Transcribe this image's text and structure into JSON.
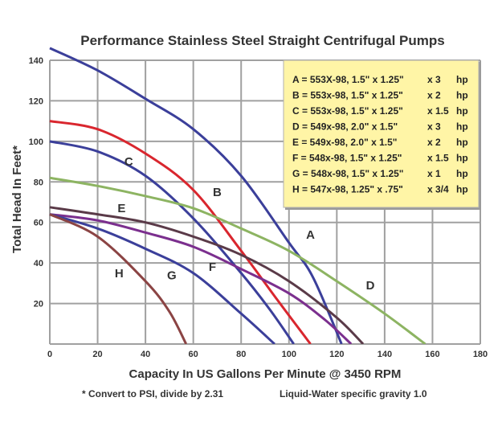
{
  "chart_data": {
    "type": "line",
    "title": "Performance Stainless Steel Straight Centrifugal Pumps",
    "xlabel": "Capacity In US Gallons Per Minute @ 3450 RPM",
    "ylabel": "Total Head In Feet*",
    "xlim": [
      0,
      180
    ],
    "ylim": [
      0,
      140
    ],
    "xticks": [
      0,
      20,
      40,
      60,
      80,
      100,
      120,
      140,
      160,
      180
    ],
    "yticks": [
      20,
      40,
      60,
      80,
      100,
      120,
      140
    ],
    "grid": true,
    "legend_position": "top-right",
    "notes": [
      "* Convert to PSI, divide by 2.31",
      "Liquid-Water specific gravity 1.0"
    ],
    "series": [
      {
        "name": "A",
        "legend": "A = 553X-98, 1.5\" x 1.25\"",
        "hp": "x 3",
        "hp_unit": "hp",
        "color": "#3b3f9a",
        "points": [
          [
            0,
            146
          ],
          [
            20,
            135
          ],
          [
            40,
            121
          ],
          [
            60,
            106
          ],
          [
            80,
            83
          ],
          [
            100,
            50
          ],
          [
            110,
            33
          ],
          [
            122,
            0
          ]
        ]
      },
      {
        "name": "B",
        "legend": "B = 553x-98, 1.5\" x 1.25\"",
        "hp": "x 2",
        "hp_unit": "hp",
        "color": "#d9262e",
        "points": [
          [
            0,
            110
          ],
          [
            20,
            106
          ],
          [
            40,
            94
          ],
          [
            60,
            76
          ],
          [
            80,
            46
          ],
          [
            95,
            22
          ],
          [
            109,
            0
          ]
        ]
      },
      {
        "name": "C",
        "legend": "C = 553x-98, 1.5\" x 1.25\"",
        "hp": "x 1.5",
        "hp_unit": "hp",
        "color": "#3b3f9a",
        "points": [
          [
            0,
            100
          ],
          [
            20,
            95
          ],
          [
            40,
            83
          ],
          [
            60,
            62
          ],
          [
            80,
            35
          ],
          [
            92,
            17
          ],
          [
            102,
            0
          ]
        ]
      },
      {
        "name": "D",
        "legend": "D = 549x-98, 2.0\" x 1.5\"",
        "hp": "x 3",
        "hp_unit": "hp",
        "color": "#8db462",
        "points": [
          [
            0,
            82
          ],
          [
            20,
            78
          ],
          [
            40,
            73
          ],
          [
            60,
            67
          ],
          [
            80,
            57
          ],
          [
            100,
            46
          ],
          [
            120,
            31
          ],
          [
            140,
            15
          ],
          [
            157,
            0
          ]
        ]
      },
      {
        "name": "E",
        "legend": "E = 549x-98, 2.0\" x 1.5\"",
        "hp": "x 2",
        "hp_unit": "hp",
        "color": "#5a3a48",
        "points": [
          [
            0,
            67.5
          ],
          [
            20,
            64
          ],
          [
            40,
            60
          ],
          [
            60,
            53
          ],
          [
            80,
            44
          ],
          [
            100,
            31
          ],
          [
            120,
            13
          ],
          [
            131,
            0
          ]
        ]
      },
      {
        "name": "F",
        "legend": "F = 548x-98, 1.5\" x 1.25\"",
        "hp": "x 1.5",
        "hp_unit": "hp",
        "color": "#7b2f8e",
        "points": [
          [
            0,
            64
          ],
          [
            20,
            61
          ],
          [
            40,
            55
          ],
          [
            60,
            48
          ],
          [
            80,
            37
          ],
          [
            100,
            25
          ],
          [
            115,
            12
          ],
          [
            126,
            0
          ]
        ]
      },
      {
        "name": "G",
        "legend": "G = 548x-98, 1.5\" x 1.25\"",
        "hp": "x 1",
        "hp_unit": "hp",
        "color": "#3b3f9a",
        "points": [
          [
            0,
            64
          ],
          [
            20,
            57
          ],
          [
            40,
            47
          ],
          [
            60,
            35
          ],
          [
            80,
            15
          ],
          [
            94,
            0
          ]
        ]
      },
      {
        "name": "H",
        "legend": "H = 547x-98, 1.25\" x .75\"",
        "hp": "x 3/4",
        "hp_unit": "hp",
        "color": "#8b4444",
        "points": [
          [
            0,
            64
          ],
          [
            20,
            53
          ],
          [
            40,
            31
          ],
          [
            50,
            16
          ],
          [
            57,
            0
          ]
        ]
      }
    ],
    "curve_labels": [
      {
        "text": "A",
        "x": 109,
        "y": 52
      },
      {
        "text": "B",
        "x": 70,
        "y": 73
      },
      {
        "text": "C",
        "x": 33,
        "y": 88
      },
      {
        "text": "D",
        "x": 134,
        "y": 27
      },
      {
        "text": "E",
        "x": 30,
        "y": 65
      },
      {
        "text": "F",
        "x": 68,
        "y": 36
      },
      {
        "text": "G",
        "x": 51,
        "y": 32
      },
      {
        "text": "H",
        "x": 29,
        "y": 33
      }
    ],
    "colors": {
      "grid": "#a0a0a0",
      "legend_bg": "#fff5a6",
      "legend_border": "#9a9a9a",
      "text": "#333333"
    }
  }
}
